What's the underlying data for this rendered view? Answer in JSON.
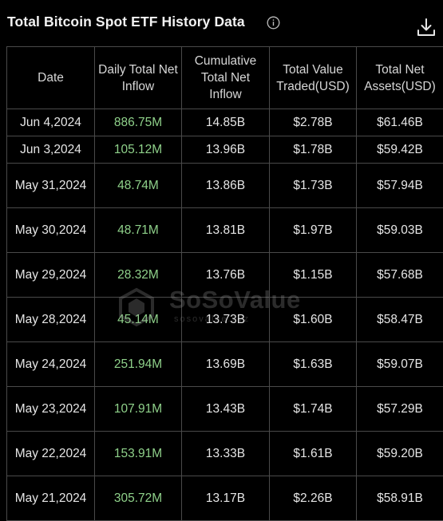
{
  "header": {
    "title": "Total Bitcoin Spot ETF History Data",
    "info_icon": "info-circle-icon",
    "download_icon": "download-icon"
  },
  "table": {
    "columns": [
      "Date",
      "Daily Total Net Inflow",
      "Cumulative Total Net Inflow",
      "Total Value Traded(USD)",
      "Total Net Assets(USD)"
    ],
    "rows": [
      {
        "date": "Jun 4,2024",
        "inflow": "886.75M",
        "cumulative": "14.85B",
        "traded": "$2.78B",
        "assets": "$61.46B"
      },
      {
        "date": "Jun 3,2024",
        "inflow": "105.12M",
        "cumulative": "13.96B",
        "traded": "$1.78B",
        "assets": "$59.42B"
      },
      {
        "date": "May 31,2024",
        "inflow": "48.74M",
        "cumulative": "13.86B",
        "traded": "$1.73B",
        "assets": "$57.94B"
      },
      {
        "date": "May 30,2024",
        "inflow": "48.71M",
        "cumulative": "13.81B",
        "traded": "$1.97B",
        "assets": "$59.03B"
      },
      {
        "date": "May 29,2024",
        "inflow": "28.32M",
        "cumulative": "13.76B",
        "traded": "$1.15B",
        "assets": "$57.68B"
      },
      {
        "date": "May 28,2024",
        "inflow": "45.14M",
        "cumulative": "13.73B",
        "traded": "$1.60B",
        "assets": "$58.47B"
      },
      {
        "date": "May 24,2024",
        "inflow": "251.94M",
        "cumulative": "13.69B",
        "traded": "$1.63B",
        "assets": "$59.07B"
      },
      {
        "date": "May 23,2024",
        "inflow": "107.91M",
        "cumulative": "13.43B",
        "traded": "$1.74B",
        "assets": "$57.29B"
      },
      {
        "date": "May 22,2024",
        "inflow": "153.91M",
        "cumulative": "13.33B",
        "traded": "$1.61B",
        "assets": "$59.20B"
      },
      {
        "date": "May 21,2024",
        "inflow": "305.72M",
        "cumulative": "13.17B",
        "traded": "$2.26B",
        "assets": "$58.91B"
      }
    ]
  },
  "watermark": {
    "brand": "SoSoValue",
    "url": "sosovalue.xyz"
  },
  "colors": {
    "background": "#000000",
    "positive_inflow": "#8fd18a",
    "border": "#4a4a4a"
  }
}
